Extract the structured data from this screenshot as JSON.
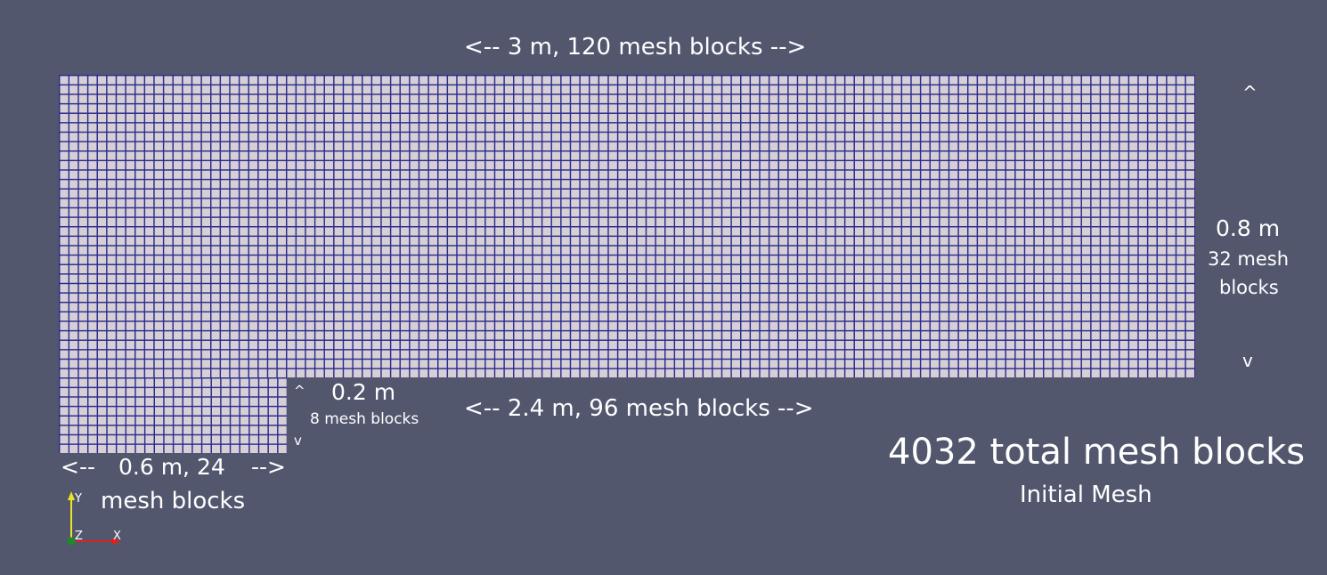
{
  "annotations": {
    "top_width": "<-- 3 m, 120 mesh blocks -->",
    "right_up_arrow": "^",
    "right_height": "0.8 m",
    "right_count_line1": "32 mesh",
    "right_count_line2": "blocks",
    "right_down_arrow": "v",
    "step_up_arrow": "^",
    "step_height": "0.2 m",
    "step_count": "8 mesh blocks",
    "step_down_arrow": "v",
    "lower_width": "<-- 2.4 m, 96 mesh blocks -->",
    "bottom_left_arrow": "<--",
    "bottom_width": "0.6 m, 24",
    "bottom_right_arrow": "-->",
    "bottom_count": "mesh blocks"
  },
  "summary": {
    "total": "4032 total mesh blocks",
    "caption": "Initial Mesh"
  },
  "axes": {
    "y": "Y",
    "z": "Z",
    "x": "X"
  },
  "colors": {
    "background": "#52576e",
    "mesh_fill": "#d6d0d6",
    "mesh_lines": "#2c2c8c",
    "axis_x": "#e0201c",
    "axis_y": "#e6e620",
    "axis_z": "#1a8c2a"
  }
}
